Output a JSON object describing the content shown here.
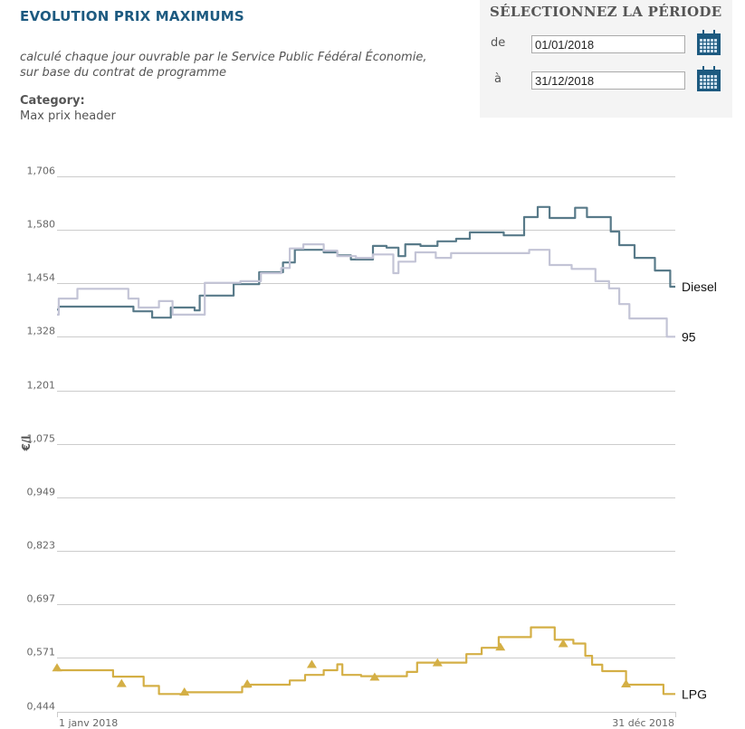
{
  "header": {
    "title": "EVOLUTION PRIX MAXIMUMS",
    "subtitle_line1": "calculé chaque jour ouvrable par le Service Public Fédéral Économie,",
    "subtitle_line2": "sur base du contrat de programme",
    "category_label": "Category:",
    "category_value": "Max prix header"
  },
  "period": {
    "title": "SÉLECTIONNEZ LA PÉRIODE",
    "from_label": "de",
    "from_value": "01/01/2018",
    "to_label": "à",
    "to_value": "31/12/2018",
    "calendar_icon": "calendar-icon",
    "accent_color": "#1d5a80"
  },
  "chart_data": {
    "type": "line",
    "title": "EVOLUTION PRIX MAXIMUMS",
    "xlabel": "",
    "ylabel": "€/l",
    "ylim": [
      0.444,
      1.706
    ],
    "yticks": [
      "1,706",
      "1,580",
      "1,454",
      "1,328",
      "1,201",
      "1,075",
      "0,949",
      "0,823",
      "0,697",
      "0,571",
      "0,444"
    ],
    "ytick_values": [
      1.706,
      1.58,
      1.454,
      1.328,
      1.201,
      1.075,
      0.949,
      0.823,
      0.697,
      0.571,
      0.444
    ],
    "xlim_days": [
      0,
      364
    ],
    "xticks": [
      {
        "day": 0,
        "label": "1 janv 2018"
      },
      {
        "day": 364,
        "label": "31 déc 2018"
      }
    ],
    "grid": true,
    "step": true,
    "series": [
      {
        "name": "Diesel",
        "color": "#587a89",
        "marker": "none",
        "points": [
          [
            0,
            1.392
          ],
          [
            1,
            1.399
          ],
          [
            44,
            1.399
          ],
          [
            45,
            1.388
          ],
          [
            55,
            1.388
          ],
          [
            56,
            1.373
          ],
          [
            66,
            1.373
          ],
          [
            67,
            1.397
          ],
          [
            80,
            1.397
          ],
          [
            81,
            1.39
          ],
          [
            82,
            1.39
          ],
          [
            83,
            1.39
          ],
          [
            84,
            1.425
          ],
          [
            103,
            1.425
          ],
          [
            104,
            1.452
          ],
          [
            118,
            1.452
          ],
          [
            119,
            1.48
          ],
          [
            132,
            1.48
          ],
          [
            133,
            1.503
          ],
          [
            139,
            1.503
          ],
          [
            140,
            1.533
          ],
          [
            156,
            1.533
          ],
          [
            157,
            1.527
          ],
          [
            164,
            1.527
          ],
          [
            165,
            1.52
          ],
          [
            172,
            1.52
          ],
          [
            173,
            1.51
          ],
          [
            185,
            1.51
          ],
          [
            186,
            1.542
          ],
          [
            193,
            1.542
          ],
          [
            194,
            1.538
          ],
          [
            200,
            1.538
          ],
          [
            201,
            1.518
          ],
          [
            204,
            1.518
          ],
          [
            205,
            1.546
          ],
          [
            213,
            1.546
          ],
          [
            214,
            1.542
          ],
          [
            223,
            1.542
          ],
          [
            224,
            1.553
          ],
          [
            234,
            1.553
          ],
          [
            235,
            1.559
          ],
          [
            242,
            1.559
          ],
          [
            243,
            1.574
          ],
          [
            262,
            1.574
          ],
          [
            263,
            1.567
          ],
          [
            274,
            1.567
          ],
          [
            275,
            1.61
          ],
          [
            282,
            1.61
          ],
          [
            283,
            1.634
          ],
          [
            289,
            1.634
          ],
          [
            290,
            1.608
          ],
          [
            304,
            1.608
          ],
          [
            305,
            1.632
          ],
          [
            311,
            1.632
          ],
          [
            312,
            1.61
          ],
          [
            325,
            1.61
          ],
          [
            326,
            1.576
          ],
          [
            330,
            1.576
          ],
          [
            331,
            1.544
          ],
          [
            339,
            1.544
          ],
          [
            340,
            1.514
          ],
          [
            351,
            1.514
          ],
          [
            352,
            1.484
          ],
          [
            360,
            1.484
          ],
          [
            361,
            1.446
          ],
          [
            364,
            1.446
          ]
        ]
      },
      {
        "name": "95",
        "color": "#c3c4d6",
        "marker": "none",
        "points": [
          [
            0,
            1.38
          ],
          [
            1,
            1.418
          ],
          [
            11,
            1.418
          ],
          [
            12,
            1.441
          ],
          [
            41,
            1.441
          ],
          [
            42,
            1.418
          ],
          [
            47,
            1.418
          ],
          [
            48,
            1.397
          ],
          [
            59,
            1.397
          ],
          [
            60,
            1.412
          ],
          [
            67,
            1.412
          ],
          [
            68,
            1.38
          ],
          [
            86,
            1.38
          ],
          [
            87,
            1.455
          ],
          [
            107,
            1.455
          ],
          [
            108,
            1.459
          ],
          [
            119,
            1.459
          ],
          [
            120,
            1.478
          ],
          [
            131,
            1.478
          ],
          [
            132,
            1.49
          ],
          [
            136,
            1.49
          ],
          [
            137,
            1.536
          ],
          [
            144,
            1.536
          ],
          [
            145,
            1.546
          ],
          [
            156,
            1.546
          ],
          [
            157,
            1.531
          ],
          [
            164,
            1.531
          ],
          [
            165,
            1.518
          ],
          [
            175,
            1.518
          ],
          [
            176,
            1.514
          ],
          [
            185,
            1.514
          ],
          [
            186,
            1.522
          ],
          [
            197,
            1.522
          ],
          [
            198,
            1.478
          ],
          [
            200,
            1.478
          ],
          [
            201,
            1.505
          ],
          [
            210,
            1.505
          ],
          [
            211,
            1.527
          ],
          [
            222,
            1.527
          ],
          [
            223,
            1.514
          ],
          [
            231,
            1.514
          ],
          [
            232,
            1.525
          ],
          [
            276,
            1.525
          ],
          [
            278,
            1.533
          ],
          [
            289,
            1.533
          ],
          [
            290,
            1.497
          ],
          [
            302,
            1.497
          ],
          [
            303,
            1.488
          ],
          [
            316,
            1.488
          ],
          [
            317,
            1.459
          ],
          [
            324,
            1.459
          ],
          [
            325,
            1.442
          ],
          [
            330,
            1.442
          ],
          [
            331,
            1.405
          ],
          [
            336,
            1.405
          ],
          [
            337,
            1.371
          ],
          [
            358,
            1.371
          ],
          [
            359,
            1.328
          ],
          [
            364,
            1.328
          ]
        ]
      },
      {
        "name": "LPG",
        "color": "#d4af45",
        "marker": "triangle",
        "points": [
          [
            0,
            0.542
          ],
          [
            32,
            0.542
          ],
          [
            33,
            0.527
          ],
          [
            50,
            0.527
          ],
          [
            51,
            0.505
          ],
          [
            59,
            0.505
          ],
          [
            60,
            0.486
          ],
          [
            74,
            0.486
          ],
          [
            75,
            0.49
          ],
          [
            108,
            0.49
          ],
          [
            109,
            0.503
          ],
          [
            113,
            0.503
          ],
          [
            114,
            0.508
          ],
          [
            125,
            0.508
          ],
          [
            126,
            0.508
          ],
          [
            136,
            0.508
          ],
          [
            137,
            0.518
          ],
          [
            145,
            0.518
          ],
          [
            146,
            0.531
          ],
          [
            156,
            0.531
          ],
          [
            157,
            0.542
          ],
          [
            164,
            0.542
          ],
          [
            165,
            0.556
          ],
          [
            167,
            0.556
          ],
          [
            168,
            0.531
          ],
          [
            178,
            0.531
          ],
          [
            179,
            0.528
          ],
          [
            205,
            0.528
          ],
          [
            206,
            0.538
          ],
          [
            211,
            0.538
          ],
          [
            212,
            0.56
          ],
          [
            240,
            0.56
          ],
          [
            241,
            0.58
          ],
          [
            249,
            0.58
          ],
          [
            250,
            0.595
          ],
          [
            259,
            0.595
          ],
          [
            260,
            0.62
          ],
          [
            278,
            0.62
          ],
          [
            279,
            0.643
          ],
          [
            292,
            0.643
          ],
          [
            293,
            0.614
          ],
          [
            303,
            0.614
          ],
          [
            304,
            0.605
          ],
          [
            310,
            0.605
          ],
          [
            311,
            0.576
          ],
          [
            314,
            0.576
          ],
          [
            315,
            0.555
          ],
          [
            320,
            0.555
          ],
          [
            321,
            0.54
          ],
          [
            334,
            0.54
          ],
          [
            335,
            0.508
          ],
          [
            356,
            0.508
          ],
          [
            357,
            0.486
          ],
          [
            364,
            0.486
          ]
        ],
        "marker_points": [
          [
            0,
            0.548
          ],
          [
            38,
            0.511
          ],
          [
            75,
            0.491
          ],
          [
            112,
            0.51
          ],
          [
            150,
            0.556
          ],
          [
            187,
            0.526
          ],
          [
            224,
            0.56
          ],
          [
            261,
            0.597
          ],
          [
            298,
            0.605
          ],
          [
            335,
            0.51
          ]
        ]
      }
    ]
  }
}
